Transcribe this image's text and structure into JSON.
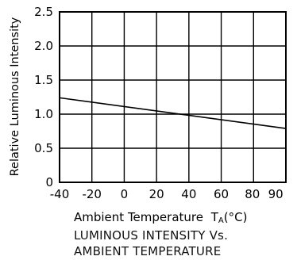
{
  "chart_data": {
    "type": "line",
    "title": "",
    "xlabel": "Ambient Temperature",
    "xlabel_symbol": "T",
    "xlabel_subscript": "A",
    "xlabel_unit": "(°C)",
    "ylabel": "Relative Luminous Intensity",
    "xlim": [
      -40,
      100
    ],
    "ylim": [
      0,
      2.5
    ],
    "x_ticks": [
      -40,
      -20,
      0,
      20,
      40,
      60,
      80,
      90
    ],
    "x_tick_labels": [
      "-40",
      "-20",
      "0",
      "20",
      "40",
      "60",
      "80",
      "90"
    ],
    "y_ticks": [
      0,
      0.5,
      1.0,
      1.5,
      2.0,
      2.5
    ],
    "y_tick_labels": [
      "0",
      "0.5",
      "1.0",
      "1.5",
      "2.0",
      "2.5"
    ],
    "grid": true,
    "series": [
      {
        "x": [
          -40,
          100
        ],
        "y": [
          1.24,
          0.79
        ]
      }
    ],
    "caption_lines": [
      "LUMINOUS INTENSITY Vs.",
      "AMBIENT TEMPERATURE"
    ]
  },
  "colors": {
    "line": "#000000",
    "grid": "#000000",
    "background": "#ffffff"
  }
}
